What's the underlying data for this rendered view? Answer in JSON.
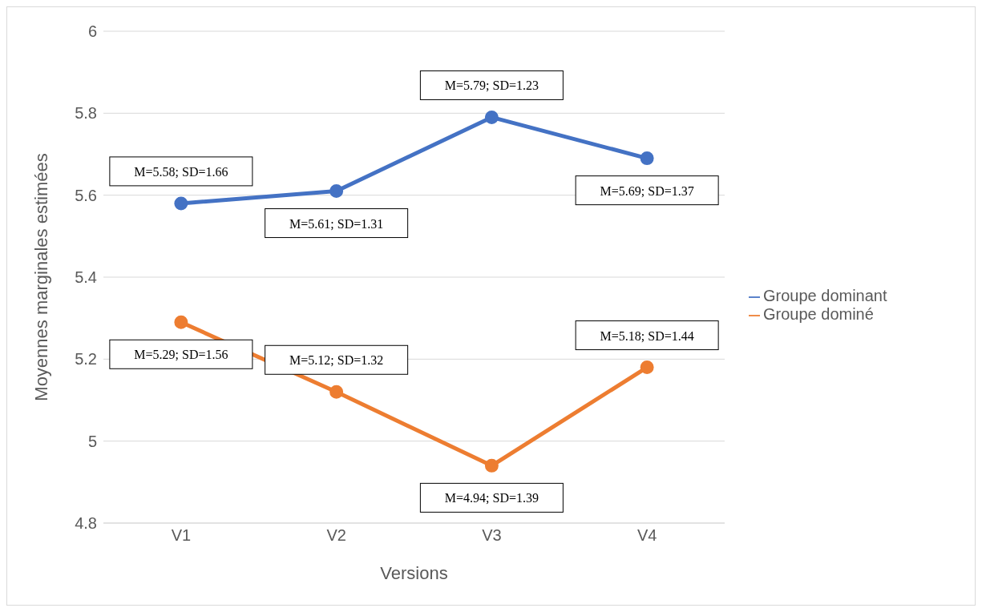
{
  "chart_data": {
    "type": "line",
    "xlabel": "Versions",
    "ylabel": "Moyennes marginales estimées",
    "categories": [
      "V1",
      "V2",
      "V3",
      "V4"
    ],
    "series": [
      {
        "name": "Groupe dominant",
        "color": "#4472c4",
        "values": [
          5.58,
          5.61,
          5.79,
          5.69
        ],
        "value_labels": [
          "M=5.58; SD=1.66",
          "M=5.61; SD=1.31",
          "M=5.79; SD=1.23",
          "M=5.69; SD=1.37"
        ]
      },
      {
        "name": "Groupe dominé",
        "color": "#ed7d31",
        "values": [
          5.29,
          5.12,
          4.94,
          5.18
        ],
        "value_labels": [
          "M=5.29; SD=1.56",
          "M=5.12; SD=1.32",
          "M=4.94; SD=1.39",
          "M=5.18; SD=1.44"
        ]
      }
    ],
    "ylim": [
      4.8,
      6
    ],
    "yticks": [
      4.8,
      5,
      5.2,
      5.4,
      5.6,
      5.8,
      6
    ],
    "grid": "y",
    "legend": "right",
    "marker": "circle"
  }
}
